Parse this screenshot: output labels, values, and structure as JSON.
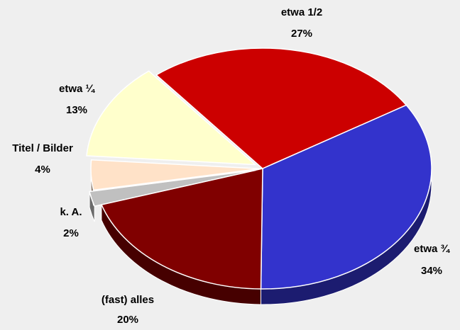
{
  "chart_data": {
    "type": "pie",
    "categories": [
      "etwa 1/2",
      "etwa ¾",
      "(fast) alles",
      "k. A.",
      "Titel / Bilder",
      "etwa ¼"
    ],
    "values": [
      27,
      34,
      20,
      2,
      4,
      13
    ],
    "value_labels": [
      "27%",
      "34%",
      "20%",
      "2%",
      "4%",
      "13%"
    ],
    "colors": [
      "#cc0000",
      "#3333cc",
      "#800000",
      "#c0c0c0",
      "#ffe2c8",
      "#ffffcc"
    ]
  }
}
